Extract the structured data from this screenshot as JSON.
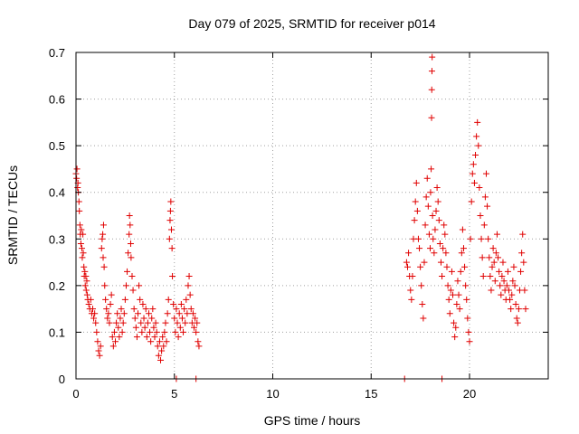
{
  "chart_data": {
    "type": "scatter",
    "title": "Day 079 of 2025, SRMTID for receiver p014",
    "xlabel": "GPS time / hours",
    "ylabel": "SRMTID / TECUs",
    "xlim": [
      0,
      24
    ],
    "ylim": [
      0,
      0.7
    ],
    "xticks": [
      0,
      5,
      10,
      15,
      20
    ],
    "yticks": [
      0,
      0.1,
      0.2,
      0.3,
      0.4,
      0.5,
      0.6,
      0.7
    ],
    "xtick_labels": [
      "0",
      "5",
      "10",
      "15",
      "20"
    ],
    "ytick_labels": [
      "0",
      "0.1",
      "0.2",
      "0.3",
      "0.4",
      "0.5",
      "0.6",
      "0.7"
    ],
    "grid": true,
    "marker": "+",
    "color": "#e00000",
    "series": [
      {
        "name": "p014",
        "points": [
          [
            0.0,
            0.44
          ],
          [
            0.03,
            0.43
          ],
          [
            0.05,
            0.45
          ],
          [
            0.08,
            0.41
          ],
          [
            0.1,
            0.42
          ],
          [
            0.12,
            0.4
          ],
          [
            0.15,
            0.38
          ],
          [
            0.17,
            0.36
          ],
          [
            0.2,
            0.33
          ],
          [
            0.22,
            0.31
          ],
          [
            0.25,
            0.29
          ],
          [
            0.27,
            0.32
          ],
          [
            0.3,
            0.28
          ],
          [
            0.32,
            0.26
          ],
          [
            0.35,
            0.31
          ],
          [
            0.37,
            0.27
          ],
          [
            0.4,
            0.24
          ],
          [
            0.42,
            0.22
          ],
          [
            0.45,
            0.23
          ],
          [
            0.47,
            0.2
          ],
          [
            0.5,
            0.22
          ],
          [
            0.52,
            0.19
          ],
          [
            0.55,
            0.21
          ],
          [
            0.57,
            0.18
          ],
          [
            0.6,
            0.17
          ],
          [
            0.65,
            0.16
          ],
          [
            0.7,
            0.15
          ],
          [
            0.75,
            0.17
          ],
          [
            0.8,
            0.14
          ],
          [
            0.85,
            0.15
          ],
          [
            0.9,
            0.13
          ],
          [
            0.95,
            0.14
          ],
          [
            1.0,
            0.12
          ],
          [
            1.05,
            0.1
          ],
          [
            1.1,
            0.08
          ],
          [
            1.15,
            0.06
          ],
          [
            1.2,
            0.05
          ],
          [
            1.25,
            0.07
          ],
          [
            1.3,
            0.28
          ],
          [
            1.33,
            0.3
          ],
          [
            1.36,
            0.31
          ],
          [
            1.38,
            0.26
          ],
          [
            1.4,
            0.33
          ],
          [
            1.43,
            0.24
          ],
          [
            1.46,
            0.2
          ],
          [
            1.5,
            0.17
          ],
          [
            1.55,
            0.15
          ],
          [
            1.6,
            0.13
          ],
          [
            1.65,
            0.14
          ],
          [
            1.7,
            0.12
          ],
          [
            1.75,
            0.16
          ],
          [
            1.8,
            0.18
          ],
          [
            1.85,
            0.09
          ],
          [
            1.9,
            0.07
          ],
          [
            1.95,
            0.1
          ],
          [
            2.0,
            0.08
          ],
          [
            2.05,
            0.12
          ],
          [
            2.1,
            0.14
          ],
          [
            2.15,
            0.11
          ],
          [
            2.2,
            0.09
          ],
          [
            2.25,
            0.13
          ],
          [
            2.3,
            0.15
          ],
          [
            2.35,
            0.1
          ],
          [
            2.4,
            0.12
          ],
          [
            2.45,
            0.14
          ],
          [
            2.5,
            0.17
          ],
          [
            2.55,
            0.2
          ],
          [
            2.6,
            0.23
          ],
          [
            2.65,
            0.27
          ],
          [
            2.7,
            0.31
          ],
          [
            2.72,
            0.35
          ],
          [
            2.75,
            0.33
          ],
          [
            2.78,
            0.29
          ],
          [
            2.8,
            0.26
          ],
          [
            2.85,
            0.22
          ],
          [
            2.9,
            0.19
          ],
          [
            2.95,
            0.15
          ],
          [
            3.0,
            0.13
          ],
          [
            3.05,
            0.11
          ],
          [
            3.1,
            0.09
          ],
          [
            3.15,
            0.14
          ],
          [
            3.2,
            0.2
          ],
          [
            3.25,
            0.17
          ],
          [
            3.3,
            0.12
          ],
          [
            3.35,
            0.1
          ],
          [
            3.4,
            0.16
          ],
          [
            3.45,
            0.13
          ],
          [
            3.5,
            0.11
          ],
          [
            3.55,
            0.15
          ],
          [
            3.6,
            0.09
          ],
          [
            3.65,
            0.12
          ],
          [
            3.7,
            0.14
          ],
          [
            3.75,
            0.1
          ],
          [
            3.8,
            0.08
          ],
          [
            3.85,
            0.13
          ],
          [
            3.9,
            0.15
          ],
          [
            3.95,
            0.11
          ],
          [
            4.0,
            0.09
          ],
          [
            4.05,
            0.12
          ],
          [
            4.1,
            0.1
          ],
          [
            4.15,
            0.07
          ],
          [
            4.2,
            0.05
          ],
          [
            4.25,
            0.08
          ],
          [
            4.3,
            0.04
          ],
          [
            4.35,
            0.06
          ],
          [
            4.4,
            0.09
          ],
          [
            4.45,
            0.07
          ],
          [
            4.5,
            0.1
          ],
          [
            4.55,
            0.12
          ],
          [
            4.6,
            0.08
          ],
          [
            4.65,
            0.14
          ],
          [
            4.7,
            0.17
          ],
          [
            4.75,
            0.3
          ],
          [
            4.78,
            0.34
          ],
          [
            4.8,
            0.36
          ],
          [
            4.82,
            0.38
          ],
          [
            4.85,
            0.32
          ],
          [
            4.88,
            0.28
          ],
          [
            4.9,
            0.22
          ],
          [
            4.95,
            0.16
          ],
          [
            5.0,
            0.13
          ],
          [
            5.05,
            0.1
          ],
          [
            5.1,
            0.15
          ],
          [
            5.15,
            0.12
          ],
          [
            5.2,
            0.09
          ],
          [
            5.25,
            0.14
          ],
          [
            5.3,
            0.11
          ],
          [
            5.35,
            0.16
          ],
          [
            5.4,
            0.13
          ],
          [
            5.45,
            0.1
          ],
          [
            5.5,
            0.15
          ],
          [
            5.55,
            0.12
          ],
          [
            5.6,
            0.17
          ],
          [
            5.65,
            0.14
          ],
          [
            5.7,
            0.2
          ],
          [
            5.75,
            0.22
          ],
          [
            5.8,
            0.18
          ],
          [
            5.85,
            0.15
          ],
          [
            5.9,
            0.12
          ],
          [
            5.95,
            0.14
          ],
          [
            6.0,
            0.11
          ],
          [
            6.05,
            0.13
          ],
          [
            6.1,
            0.1
          ],
          [
            6.15,
            0.12
          ],
          [
            6.2,
            0.08
          ],
          [
            6.25,
            0.07
          ],
          [
            5.1,
            0.0
          ],
          [
            6.1,
            0.0
          ],
          [
            16.7,
            0.0
          ],
          [
            18.6,
            0.0
          ],
          [
            16.8,
            0.25
          ],
          [
            16.85,
            0.24
          ],
          [
            16.9,
            0.27
          ],
          [
            16.95,
            0.22
          ],
          [
            17.0,
            0.19
          ],
          [
            17.05,
            0.17
          ],
          [
            17.1,
            0.22
          ],
          [
            17.15,
            0.3
          ],
          [
            17.2,
            0.34
          ],
          [
            17.25,
            0.38
          ],
          [
            17.3,
            0.42
          ],
          [
            17.35,
            0.36
          ],
          [
            17.4,
            0.3
          ],
          [
            17.45,
            0.28
          ],
          [
            17.5,
            0.24
          ],
          [
            17.55,
            0.2
          ],
          [
            17.6,
            0.16
          ],
          [
            17.65,
            0.13
          ],
          [
            17.7,
            0.25
          ],
          [
            17.75,
            0.33
          ],
          [
            17.8,
            0.39
          ],
          [
            17.85,
            0.43
          ],
          [
            17.9,
            0.37
          ],
          [
            17.95,
            0.31
          ],
          [
            18.0,
            0.28
          ],
          [
            18.02,
            0.4
          ],
          [
            18.05,
            0.45
          ],
          [
            18.07,
            0.56
          ],
          [
            18.08,
            0.62
          ],
          [
            18.09,
            0.66
          ],
          [
            18.1,
            0.69
          ],
          [
            18.12,
            0.35
          ],
          [
            18.15,
            0.3
          ],
          [
            18.2,
            0.27
          ],
          [
            18.25,
            0.32
          ],
          [
            18.3,
            0.36
          ],
          [
            18.35,
            0.41
          ],
          [
            18.4,
            0.38
          ],
          [
            18.45,
            0.34
          ],
          [
            18.5,
            0.29
          ],
          [
            18.55,
            0.25
          ],
          [
            18.6,
            0.22
          ],
          [
            18.65,
            0.28
          ],
          [
            18.7,
            0.33
          ],
          [
            18.75,
            0.31
          ],
          [
            18.8,
            0.27
          ],
          [
            18.85,
            0.24
          ],
          [
            18.9,
            0.2
          ],
          [
            18.95,
            0.17
          ],
          [
            19.0,
            0.14
          ],
          [
            19.05,
            0.19
          ],
          [
            19.1,
            0.23
          ],
          [
            19.15,
            0.18
          ],
          [
            19.2,
            0.12
          ],
          [
            19.25,
            0.09
          ],
          [
            19.3,
            0.11
          ],
          [
            19.35,
            0.16
          ],
          [
            19.4,
            0.21
          ],
          [
            19.45,
            0.18
          ],
          [
            19.5,
            0.15
          ],
          [
            19.55,
            0.23
          ],
          [
            19.6,
            0.27
          ],
          [
            19.65,
            0.32
          ],
          [
            19.7,
            0.28
          ],
          [
            19.75,
            0.24
          ],
          [
            19.8,
            0.2
          ],
          [
            19.85,
            0.17
          ],
          [
            19.9,
            0.13
          ],
          [
            19.95,
            0.1
          ],
          [
            20.0,
            0.08
          ],
          [
            20.05,
            0.3
          ],
          [
            20.1,
            0.38
          ],
          [
            20.15,
            0.44
          ],
          [
            20.2,
            0.46
          ],
          [
            20.25,
            0.42
          ],
          [
            20.3,
            0.48
          ],
          [
            20.35,
            0.52
          ],
          [
            20.4,
            0.55
          ],
          [
            20.45,
            0.5
          ],
          [
            20.5,
            0.41
          ],
          [
            20.55,
            0.35
          ],
          [
            20.6,
            0.3
          ],
          [
            20.65,
            0.26
          ],
          [
            20.7,
            0.22
          ],
          [
            20.75,
            0.33
          ],
          [
            20.8,
            0.39
          ],
          [
            20.85,
            0.44
          ],
          [
            20.9,
            0.37
          ],
          [
            20.95,
            0.3
          ],
          [
            21.0,
            0.26
          ],
          [
            21.05,
            0.22
          ],
          [
            21.1,
            0.19
          ],
          [
            21.15,
            0.24
          ],
          [
            21.2,
            0.28
          ],
          [
            21.25,
            0.25
          ],
          [
            21.3,
            0.21
          ],
          [
            21.35,
            0.27
          ],
          [
            21.4,
            0.31
          ],
          [
            21.45,
            0.26
          ],
          [
            21.5,
            0.23
          ],
          [
            21.55,
            0.2
          ],
          [
            21.6,
            0.18
          ],
          [
            21.65,
            0.22
          ],
          [
            21.7,
            0.25
          ],
          [
            21.75,
            0.21
          ],
          [
            21.8,
            0.19
          ],
          [
            21.85,
            0.17
          ],
          [
            21.9,
            0.2
          ],
          [
            21.95,
            0.23
          ],
          [
            22.0,
            0.19
          ],
          [
            22.05,
            0.17
          ],
          [
            22.1,
            0.15
          ],
          [
            22.15,
            0.18
          ],
          [
            22.2,
            0.21
          ],
          [
            22.25,
            0.24
          ],
          [
            22.3,
            0.2
          ],
          [
            22.35,
            0.16
          ],
          [
            22.4,
            0.13
          ],
          [
            22.45,
            0.12
          ],
          [
            22.5,
            0.15
          ],
          [
            22.55,
            0.19
          ],
          [
            22.6,
            0.23
          ],
          [
            22.65,
            0.27
          ],
          [
            22.7,
            0.31
          ],
          [
            22.75,
            0.25
          ],
          [
            22.8,
            0.19
          ],
          [
            22.85,
            0.15
          ]
        ]
      }
    ]
  }
}
